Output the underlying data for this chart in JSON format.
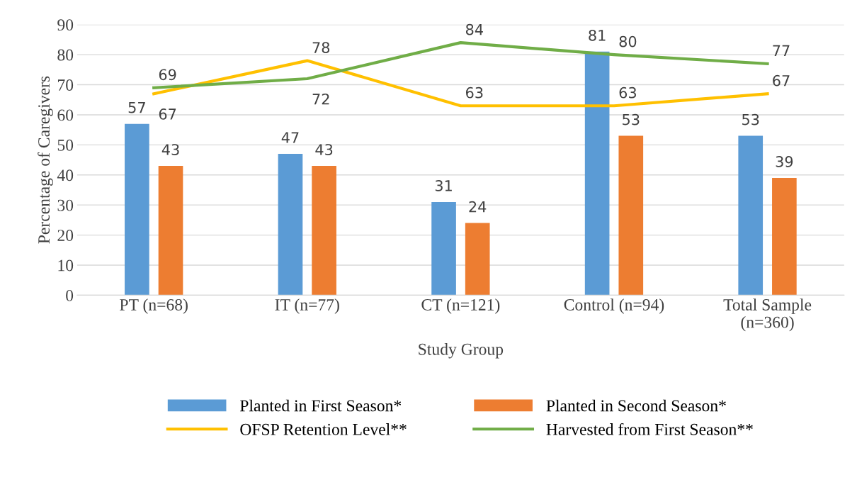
{
  "chart_data": {
    "type": "bar",
    "xlabel": "Study Group",
    "ylabel": "Percentage of Caregivers",
    "categories": [
      "PT (n=68)",
      "IT (n=77)",
      "CT (n=121)",
      "Control (n=94)",
      "Total Sample\n(n=360)"
    ],
    "series": [
      {
        "name": "Planted in First Season*",
        "color": "#5b9bd5",
        "values": [
          57,
          47,
          31,
          81,
          53
        ]
      },
      {
        "name": "Planted in Second Season*",
        "color": "#ed7d31",
        "values": [
          43,
          43,
          24,
          53,
          39
        ]
      },
      {
        "name": "OFSP Retention Level**",
        "type": "line",
        "color": "#ffc000",
        "values": [
          67,
          78,
          63,
          63,
          67
        ]
      },
      {
        "name": "Harvested from First Season**",
        "type": "line",
        "color": "#70ad47",
        "values": [
          69,
          72,
          84,
          80,
          77
        ]
      }
    ],
    "ylim": [
      0,
      90
    ],
    "yticks": [
      0,
      10,
      20,
      30,
      40,
      50,
      60,
      70,
      80,
      90
    ],
    "grid": "y",
    "legend": "bottom",
    "data_labels": true
  }
}
